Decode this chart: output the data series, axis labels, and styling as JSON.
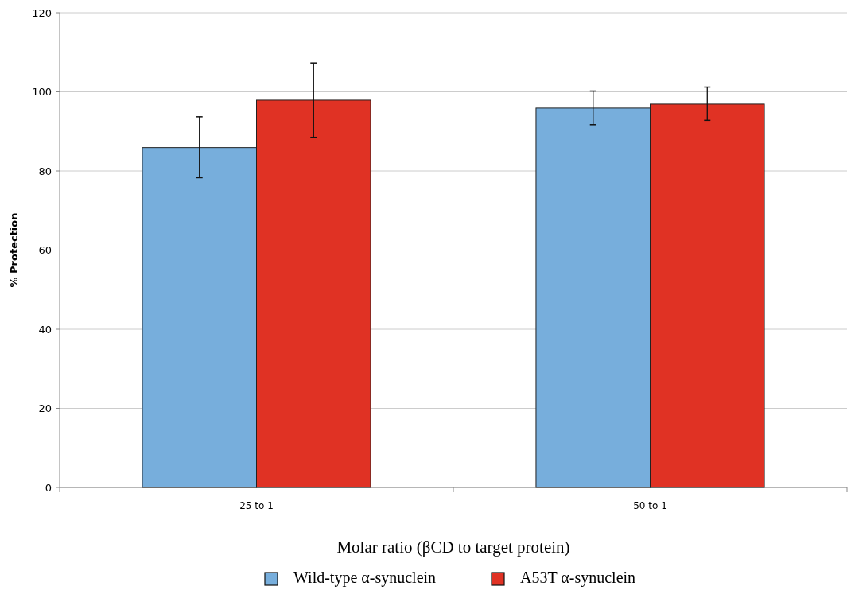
{
  "chart_data": {
    "type": "bar",
    "xlabel": "Molar ratio (βCD to target protein)",
    "ylabel": "% Protection",
    "categories": [
      "25 to 1",
      "50 to 1"
    ],
    "series": [
      {
        "name": "Wild-type α-synuclein",
        "color": "#77aedc",
        "values": [
          85.9,
          95.9
        ],
        "errors": [
          [
            78.3,
            93.7
          ],
          [
            91.7,
            100.2
          ]
        ]
      },
      {
        "name": "A53T α-synuclein",
        "color": "#e03224",
        "values": [
          97.9,
          96.9
        ],
        "errors": [
          [
            88.5,
            107.3
          ],
          [
            92.8,
            101.2
          ]
        ]
      }
    ],
    "ylim": [
      0,
      120
    ],
    "yticks": [
      0,
      20,
      40,
      60,
      80,
      100,
      120
    ],
    "grid": "y",
    "legend": "bottom"
  }
}
